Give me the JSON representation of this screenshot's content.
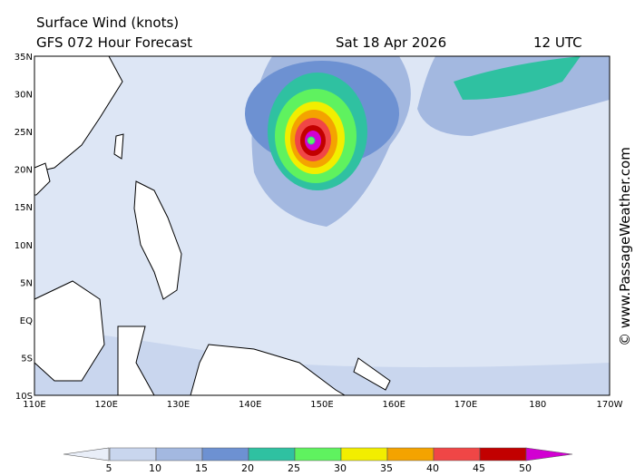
{
  "header": {
    "title": "Surface Wind (knots)",
    "model": "GFS 072 Hour Forecast",
    "date": "Sat 18 Apr 2026",
    "time": "12 UTC"
  },
  "lat_labels": [
    "35N",
    "30N",
    "25N",
    "20N",
    "15N",
    "10N",
    "5N",
    "EQ",
    "5S",
    "10S"
  ],
  "lon_labels": [
    "110E",
    "120E",
    "130E",
    "140E",
    "150E",
    "160E",
    "170E",
    "180",
    "170W"
  ],
  "legend": {
    "labels": [
      5,
      10,
      15,
      20,
      25,
      30,
      35,
      40,
      45,
      50
    ],
    "colors": [
      "#e9eef8",
      "#c9d6ee",
      "#a3b8e0",
      "#6d91d2",
      "#2fc1a1",
      "#5ff25f",
      "#f2ee00",
      "#f4a300",
      "#f04646",
      "#c20000",
      "#d200d2"
    ]
  },
  "credit": "© www.PassageWeather.com"
}
